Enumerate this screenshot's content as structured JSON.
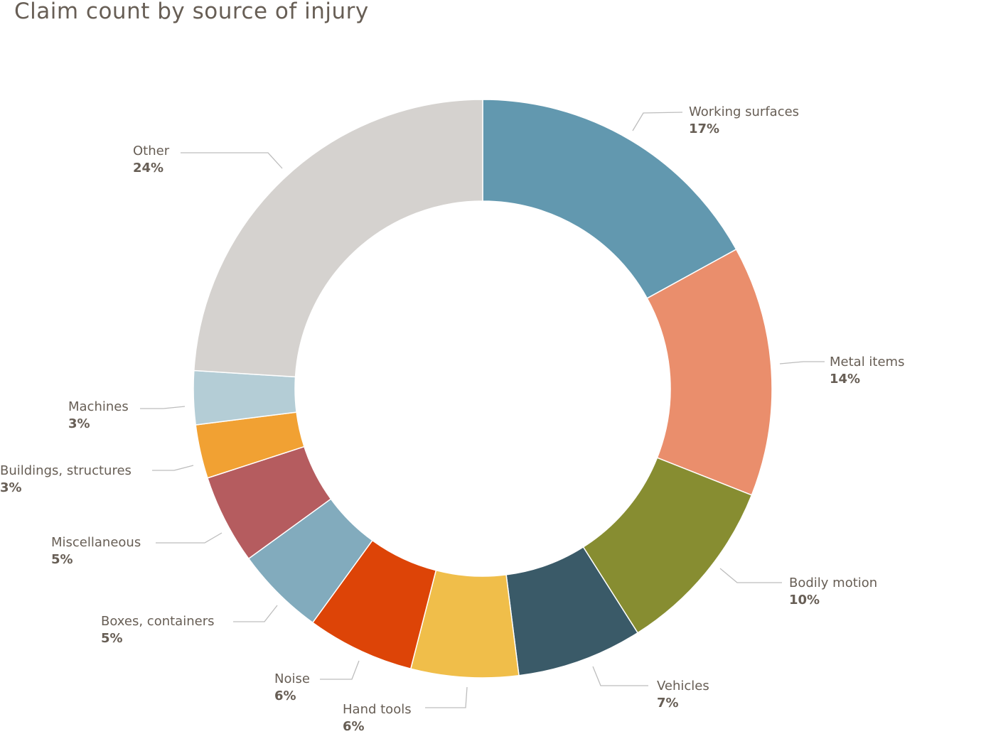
{
  "chart_data": {
    "type": "pie",
    "subtype": "donut",
    "title": "Claim count by source of injury",
    "unit": "%",
    "slices": [
      {
        "label": "Working surfaces",
        "value": 17,
        "display": "17%",
        "color": "#6298AF"
      },
      {
        "label": "Metal items",
        "value": 14,
        "display": "14%",
        "color": "#EA8E6C"
      },
      {
        "label": "Bodily motion",
        "value": 10,
        "display": "10%",
        "color": "#878D31"
      },
      {
        "label": "Vehicles",
        "value": 7,
        "display": "7%",
        "color": "#3A5A68"
      },
      {
        "label": "Hand tools",
        "value": 6,
        "display": "6%",
        "color": "#F0BE4A"
      },
      {
        "label": "Noise",
        "value": 6,
        "display": "6%",
        "color": "#DD4407"
      },
      {
        "label": "Boxes, containers",
        "value": 5,
        "display": "5%",
        "color": "#82ABBD"
      },
      {
        "label": "Miscellaneous",
        "value": 5,
        "display": "5%",
        "color": "#B55C5F"
      },
      {
        "label": "Buildings, structures",
        "value": 3,
        "display": "3%",
        "color": "#F1A133"
      },
      {
        "label": "Machines",
        "value": 3,
        "display": "3%",
        "color": "#B4CDD6"
      },
      {
        "label": "Other",
        "value": 24,
        "display": "24%",
        "color": "#D5D2CF"
      }
    ],
    "legend": "none"
  }
}
